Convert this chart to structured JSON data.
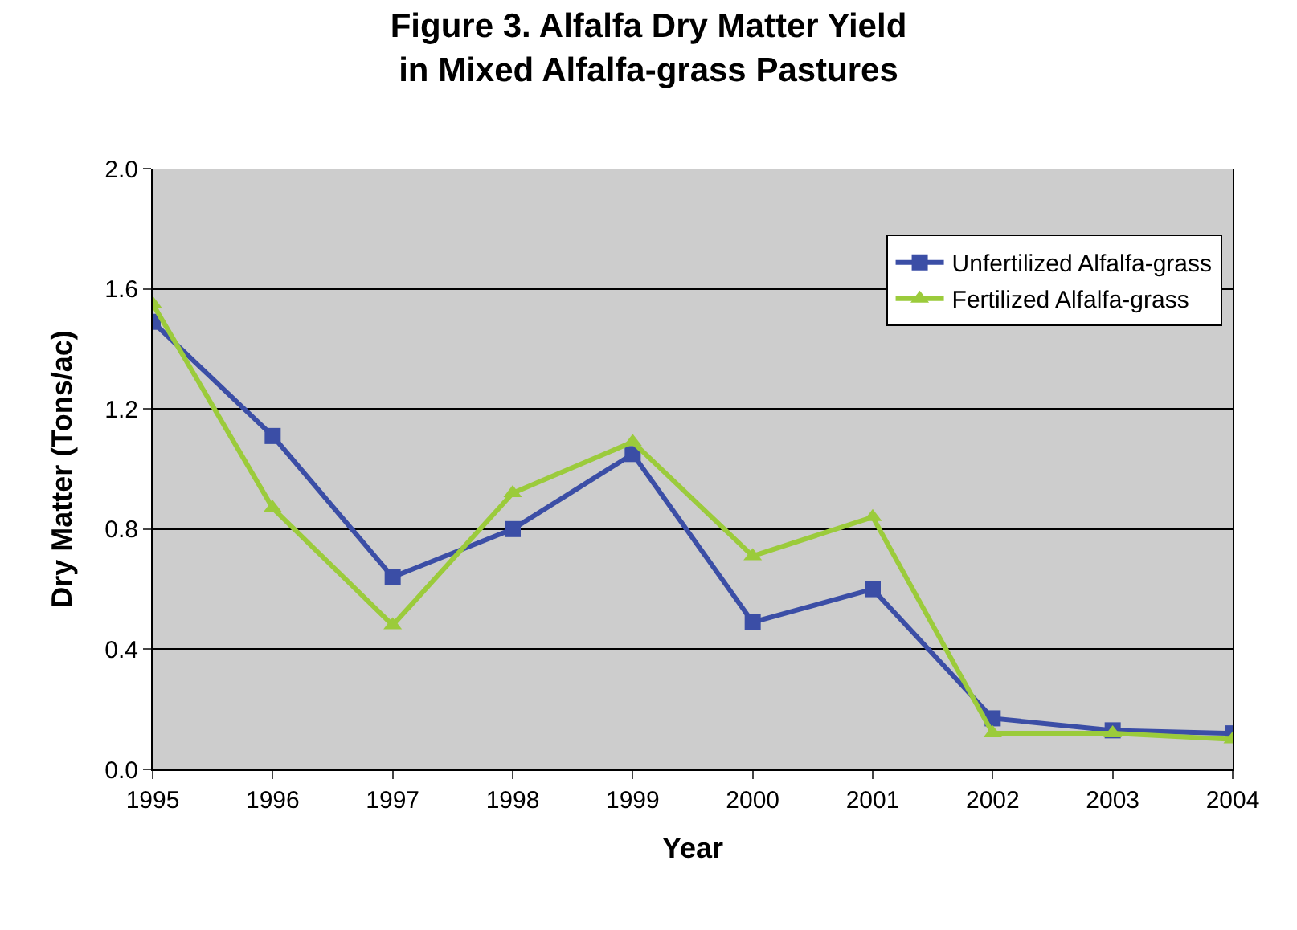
{
  "chart_data": {
    "type": "line",
    "title": "Figure 3. Alfalfa Dry Matter Yield\nin Mixed Alfalfa-grass Pastures",
    "xlabel": "Year",
    "ylabel": "Dry Matter (Tons/ac)",
    "categories": [
      "1995",
      "1996",
      "1997",
      "1998",
      "1999",
      "2000",
      "2001",
      "2002",
      "2003",
      "2004"
    ],
    "series": [
      {
        "name": "Unfertilized Alfalfa-grass",
        "color": "#3b4ea6",
        "marker": "square",
        "values": [
          1.49,
          1.11,
          0.64,
          0.8,
          1.05,
          0.49,
          0.6,
          0.17,
          0.13,
          0.12
        ]
      },
      {
        "name": "Fertilized Alfalfa-grass",
        "color": "#9bcb3b",
        "marker": "triangle",
        "values": [
          1.55,
          0.87,
          0.48,
          0.92,
          1.09,
          0.71,
          0.84,
          0.12,
          0.12,
          0.1
        ]
      }
    ],
    "ylim": [
      0,
      2.0
    ],
    "yticks": [
      {
        "value": 0,
        "label": "0.0"
      },
      {
        "value": 0.4,
        "label": "0.4"
      },
      {
        "value": 0.8,
        "label": "0.8"
      },
      {
        "value": 1.2,
        "label": "1.2"
      },
      {
        "value": 1.6,
        "label": "1.6"
      },
      {
        "value": 2.0,
        "label": "2.0"
      }
    ],
    "grid": "y",
    "legend": "top right",
    "line_style": "solid"
  }
}
